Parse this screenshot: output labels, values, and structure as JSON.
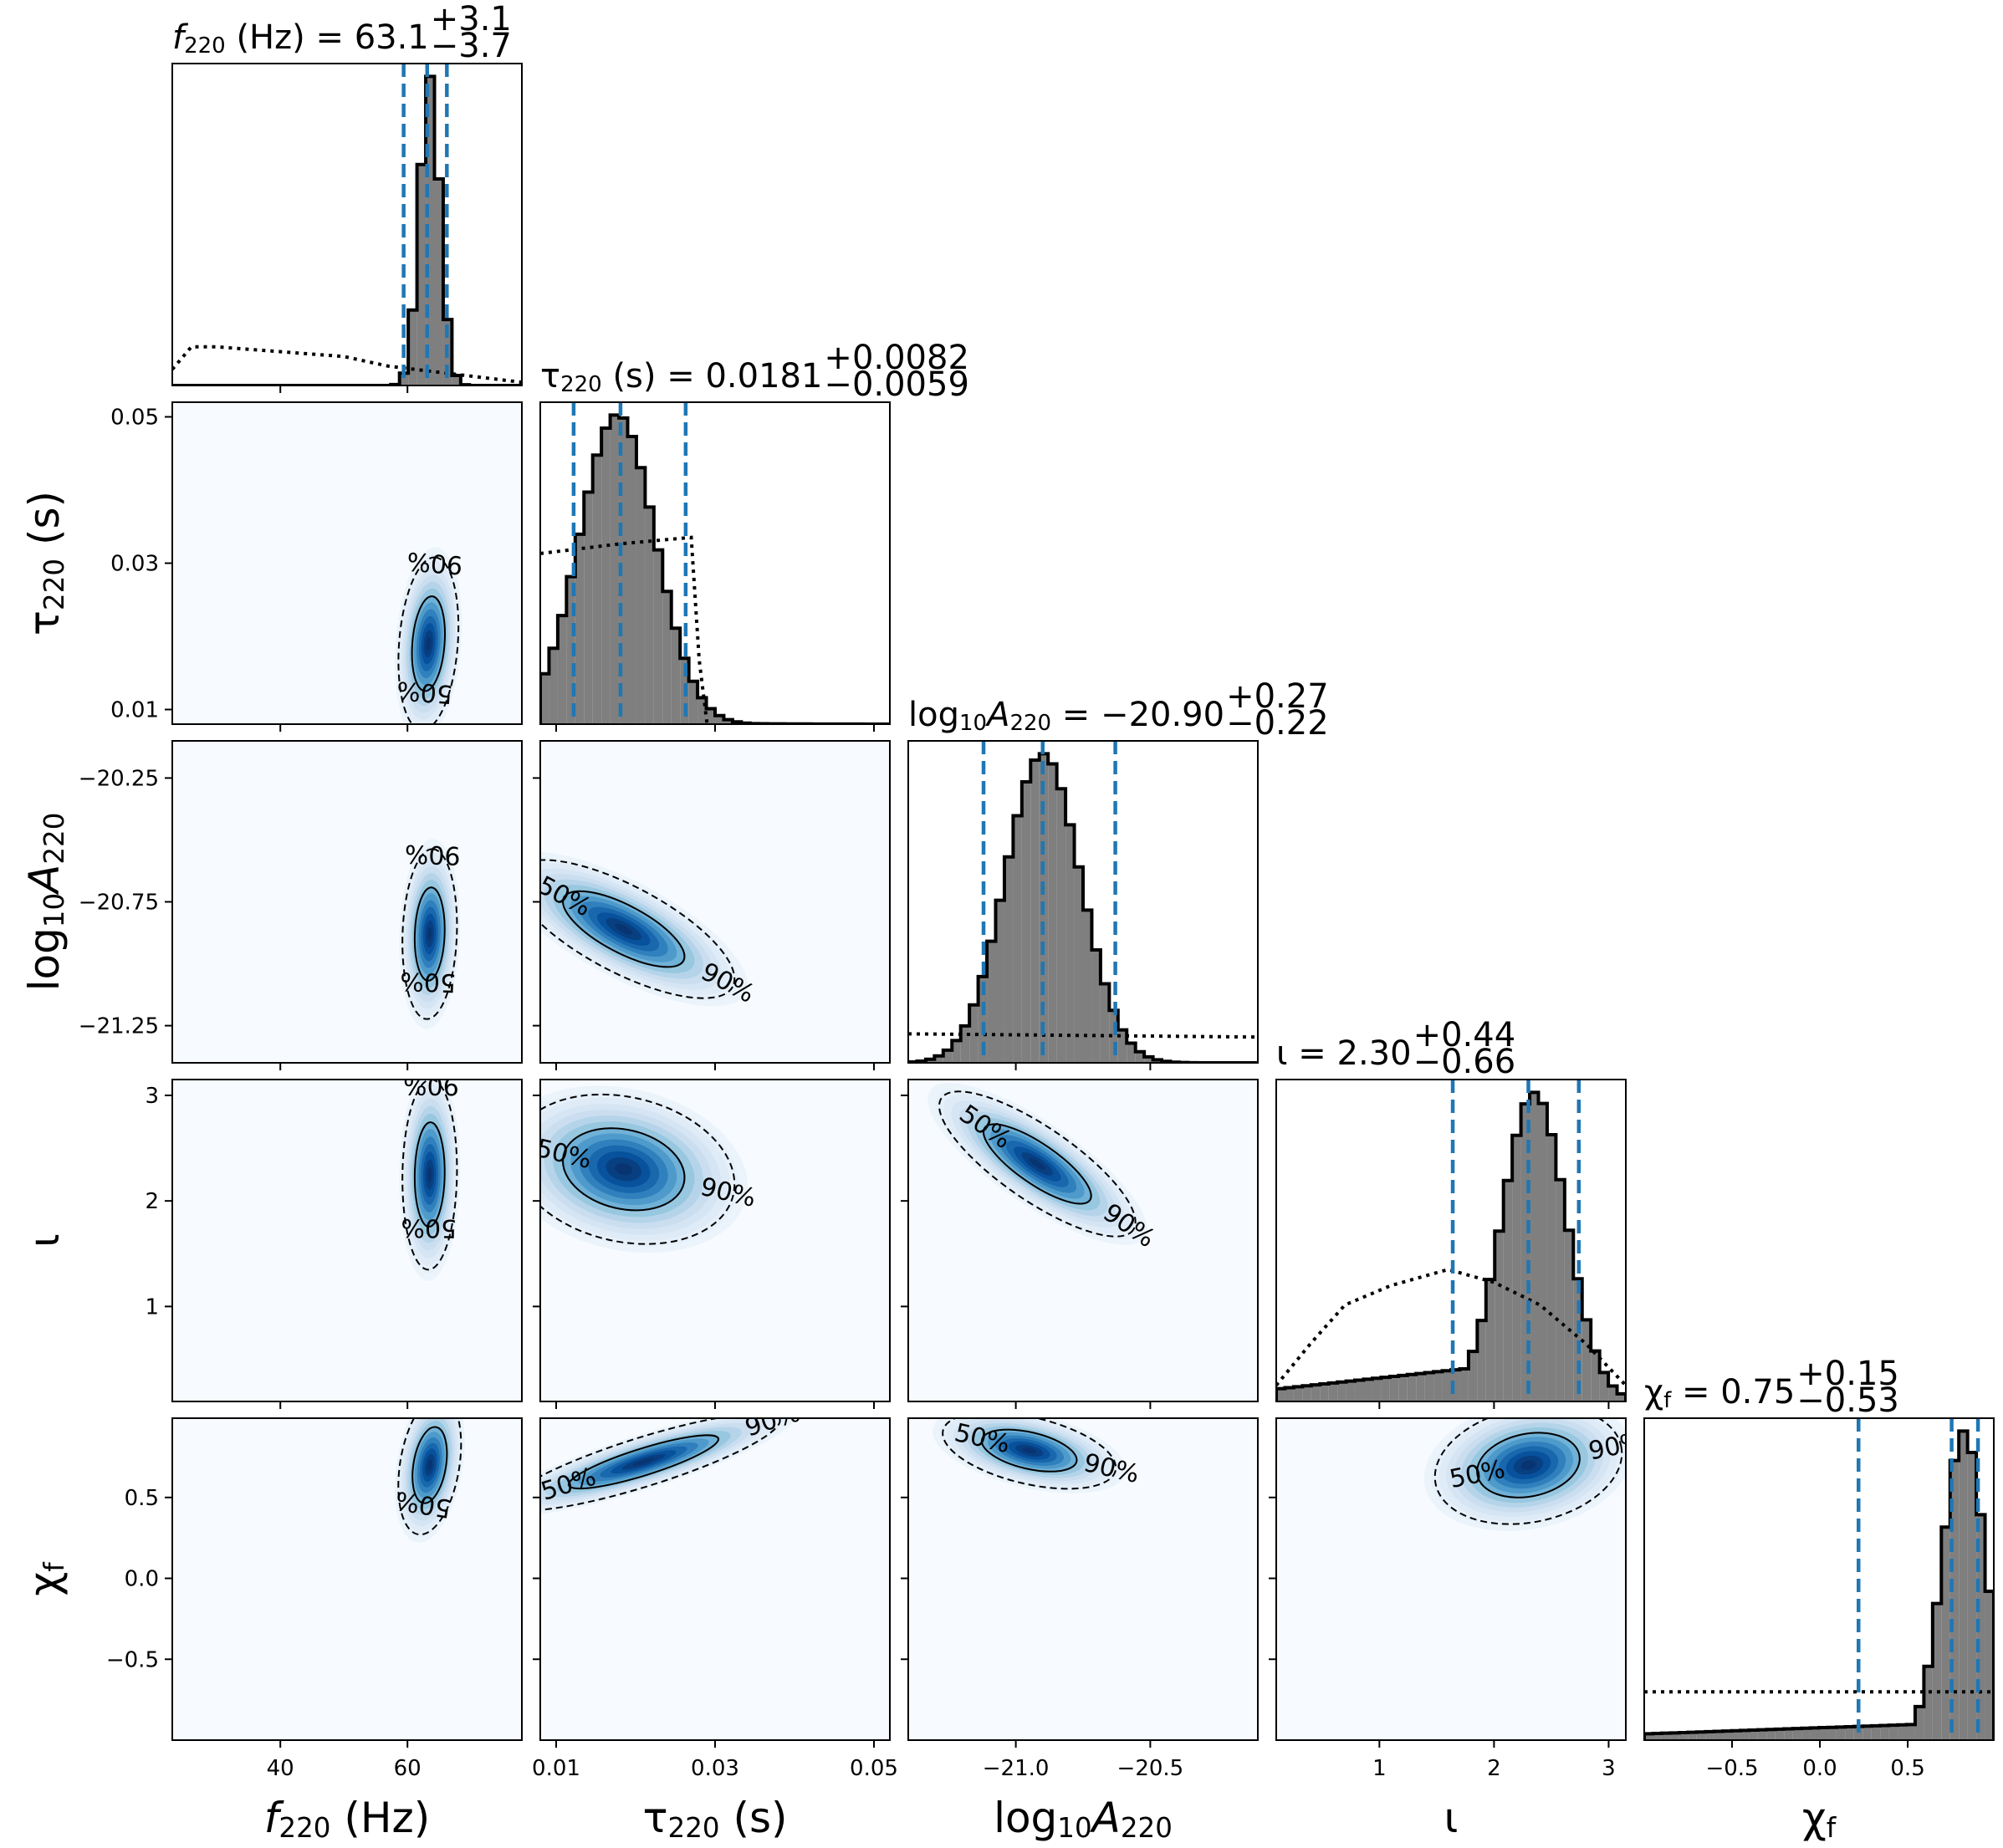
{
  "parameters": [
    {
      "key": "f220",
      "axis_label": "f220 (Hz)",
      "base": "f",
      "sub": "220",
      "suffix": " (Hz)",
      "math": true
    },
    {
      "key": "tau220",
      "axis_label": "τ220 (s)",
      "base": "τ",
      "sub": "220",
      "suffix": " (s)",
      "math": false
    },
    {
      "key": "logA220",
      "axis_label": "log10A220",
      "base": "log",
      "sub": "10",
      "base2": "A",
      "sub2": "220",
      "suffix": "",
      "math": false
    },
    {
      "key": "iota",
      "axis_label": "ι",
      "base": "ι",
      "sub": "",
      "suffix": "",
      "math": false
    },
    {
      "key": "chif",
      "axis_label": "χf",
      "base": "χ",
      "sub": "f",
      "suffix": "",
      "math": false
    }
  ],
  "chart_data": {
    "type": "corner",
    "ranges": {
      "f220": [
        23,
        78
      ],
      "tau220": [
        0.008,
        0.052
      ],
      "logA220": [
        -21.4,
        -20.1
      ],
      "iota": [
        0.1,
        3.15
      ],
      "chif": [
        -1.0,
        0.99
      ]
    },
    "ticks": {
      "f220": [
        40,
        60
      ],
      "tau220": [
        0.01,
        0.03,
        0.05
      ],
      "logA220": [
        -21.25,
        -20.75,
        -20.25
      ],
      "logA220_x": [
        -21.0,
        -20.5
      ],
      "iota": [
        1,
        2,
        3
      ],
      "chif": [
        -0.5,
        0.0,
        0.5
      ]
    },
    "tick_labels": {
      "f220": [
        "40",
        "60"
      ],
      "tau220": [
        "0.01",
        "0.03",
        "0.05"
      ],
      "logA220": [
        "−21.25",
        "−20.75",
        "−20.25"
      ],
      "logA220_x": [
        "−21.0",
        "−20.5"
      ],
      "iota": [
        "1",
        "2",
        "3"
      ],
      "chif": [
        "−0.5",
        "0.0",
        "0.5"
      ]
    },
    "marginals": [
      {
        "param": "f220",
        "title_prefix": "f220 (Hz) = ",
        "median": "63.1",
        "plus": "+3.1",
        "minus": "−3.7",
        "quantiles": [
          59.4,
          63.1,
          66.2
        ],
        "posterior_peak": 63.5,
        "posterior_sigma": 1.6,
        "prior": [
          [
            23,
            0.05
          ],
          [
            26,
            0.12
          ],
          [
            30,
            0.12
          ],
          [
            50,
            0.09
          ],
          [
            57,
            0.06
          ],
          [
            78,
            0.01
          ]
        ]
      },
      {
        "param": "tau220",
        "title_prefix": "τ220 (s) = ",
        "median": "0.0181",
        "plus": "+0.0082",
        "minus": "−0.0059",
        "quantiles": [
          0.0122,
          0.0181,
          0.0263
        ],
        "posterior_peak": 0.0177,
        "posterior_sigma": 0.0048,
        "prior": [
          [
            0.008,
            0.53
          ],
          [
            0.018,
            0.56
          ],
          [
            0.027,
            0.58
          ],
          [
            0.028,
            0.2
          ],
          [
            0.029,
            0.0
          ]
        ]
      },
      {
        "param": "logA220",
        "title_prefix": "log10A220 = ",
        "median": "−20.90",
        "plus": "+0.27",
        "minus": "−0.22",
        "quantiles": [
          -21.12,
          -20.9,
          -20.63
        ],
        "posterior_peak": -20.9,
        "posterior_sigma": 0.14,
        "prior": [
          [
            -21.4,
            0.09
          ],
          [
            -20.1,
            0.08
          ]
        ]
      },
      {
        "param": "iota",
        "title_prefix": "ι = ",
        "median": "2.30",
        "plus": "+0.44",
        "minus": "−0.66",
        "quantiles": [
          1.64,
          2.3,
          2.74
        ],
        "posterior_peak": 2.35,
        "posterior_sigma": 0.28,
        "prior": [
          [
            0.1,
            0.05
          ],
          [
            0.4,
            0.18
          ],
          [
            0.7,
            0.3
          ],
          [
            1.1,
            0.36
          ],
          [
            1.6,
            0.41
          ],
          [
            2.0,
            0.37
          ],
          [
            2.4,
            0.3
          ],
          [
            2.8,
            0.18
          ],
          [
            3.15,
            0.05
          ]
        ]
      },
      {
        "param": "chif",
        "title_prefix": "χf = ",
        "median": "0.75",
        "plus": "+0.15",
        "minus": "−0.53",
        "quantiles": [
          0.22,
          0.75,
          0.9
        ],
        "posterior_peak": 0.82,
        "posterior_sigma": 0.12,
        "prior": [
          [
            -1.0,
            0.15
          ],
          [
            0.99,
            0.15
          ]
        ]
      }
    ],
    "joints": [
      {
        "x": "f220",
        "y": "tau220",
        "cx": 63.3,
        "cy": 0.019,
        "sx": 2.2,
        "sy": 0.0055,
        "rho": 0.2,
        "label50": "50%",
        "label90": "90%"
      },
      {
        "x": "f220",
        "y": "logA220",
        "cx": 63.5,
        "cy": -20.88,
        "sx": 2.0,
        "sy": 0.16,
        "rho": 0.1,
        "label50": "50%",
        "label90": "90%"
      },
      {
        "x": "tau220",
        "y": "logA220",
        "cx": 0.0185,
        "cy": -20.86,
        "sx": 0.0065,
        "sy": 0.13,
        "rho": -0.72,
        "label50": "50%",
        "label90": "90%"
      },
      {
        "x": "f220",
        "y": "iota",
        "cx": 63.5,
        "cy": 2.25,
        "sx": 2.0,
        "sy": 0.42,
        "rho": 0.05,
        "label50": "50%",
        "label90": "90%"
      },
      {
        "x": "tau220",
        "y": "iota",
        "cx": 0.0185,
        "cy": 2.3,
        "sx": 0.0065,
        "sy": 0.33,
        "rho": -0.2,
        "label50": "50%",
        "label90": "90%"
      },
      {
        "x": "logA220",
        "y": "iota",
        "cx": -20.92,
        "cy": 2.35,
        "sx": 0.17,
        "sy": 0.32,
        "rho": -0.8,
        "label50": "50%",
        "label90": "90%"
      },
      {
        "x": "f220",
        "y": "chif",
        "cx": 63.5,
        "cy": 0.7,
        "sx": 2.3,
        "sy": 0.2,
        "rho": 0.3,
        "label50": "50%",
        "label90": "90%"
      },
      {
        "x": "tau220",
        "y": "chif",
        "cx": 0.021,
        "cy": 0.72,
        "sx": 0.008,
        "sy": 0.14,
        "rho": 0.85,
        "label50": "50%",
        "label90": "90%"
      },
      {
        "x": "logA220",
        "y": "chif",
        "cx": -20.95,
        "cy": 0.79,
        "sx": 0.15,
        "sy": 0.11,
        "rho": -0.45,
        "label50": "50%",
        "label90": "90%"
      },
      {
        "x": "iota",
        "y": "chif",
        "cx": 2.3,
        "cy": 0.7,
        "sx": 0.38,
        "sy": 0.17,
        "rho": 0.2,
        "label50": "50%",
        "label90": "90%"
      }
    ]
  }
}
